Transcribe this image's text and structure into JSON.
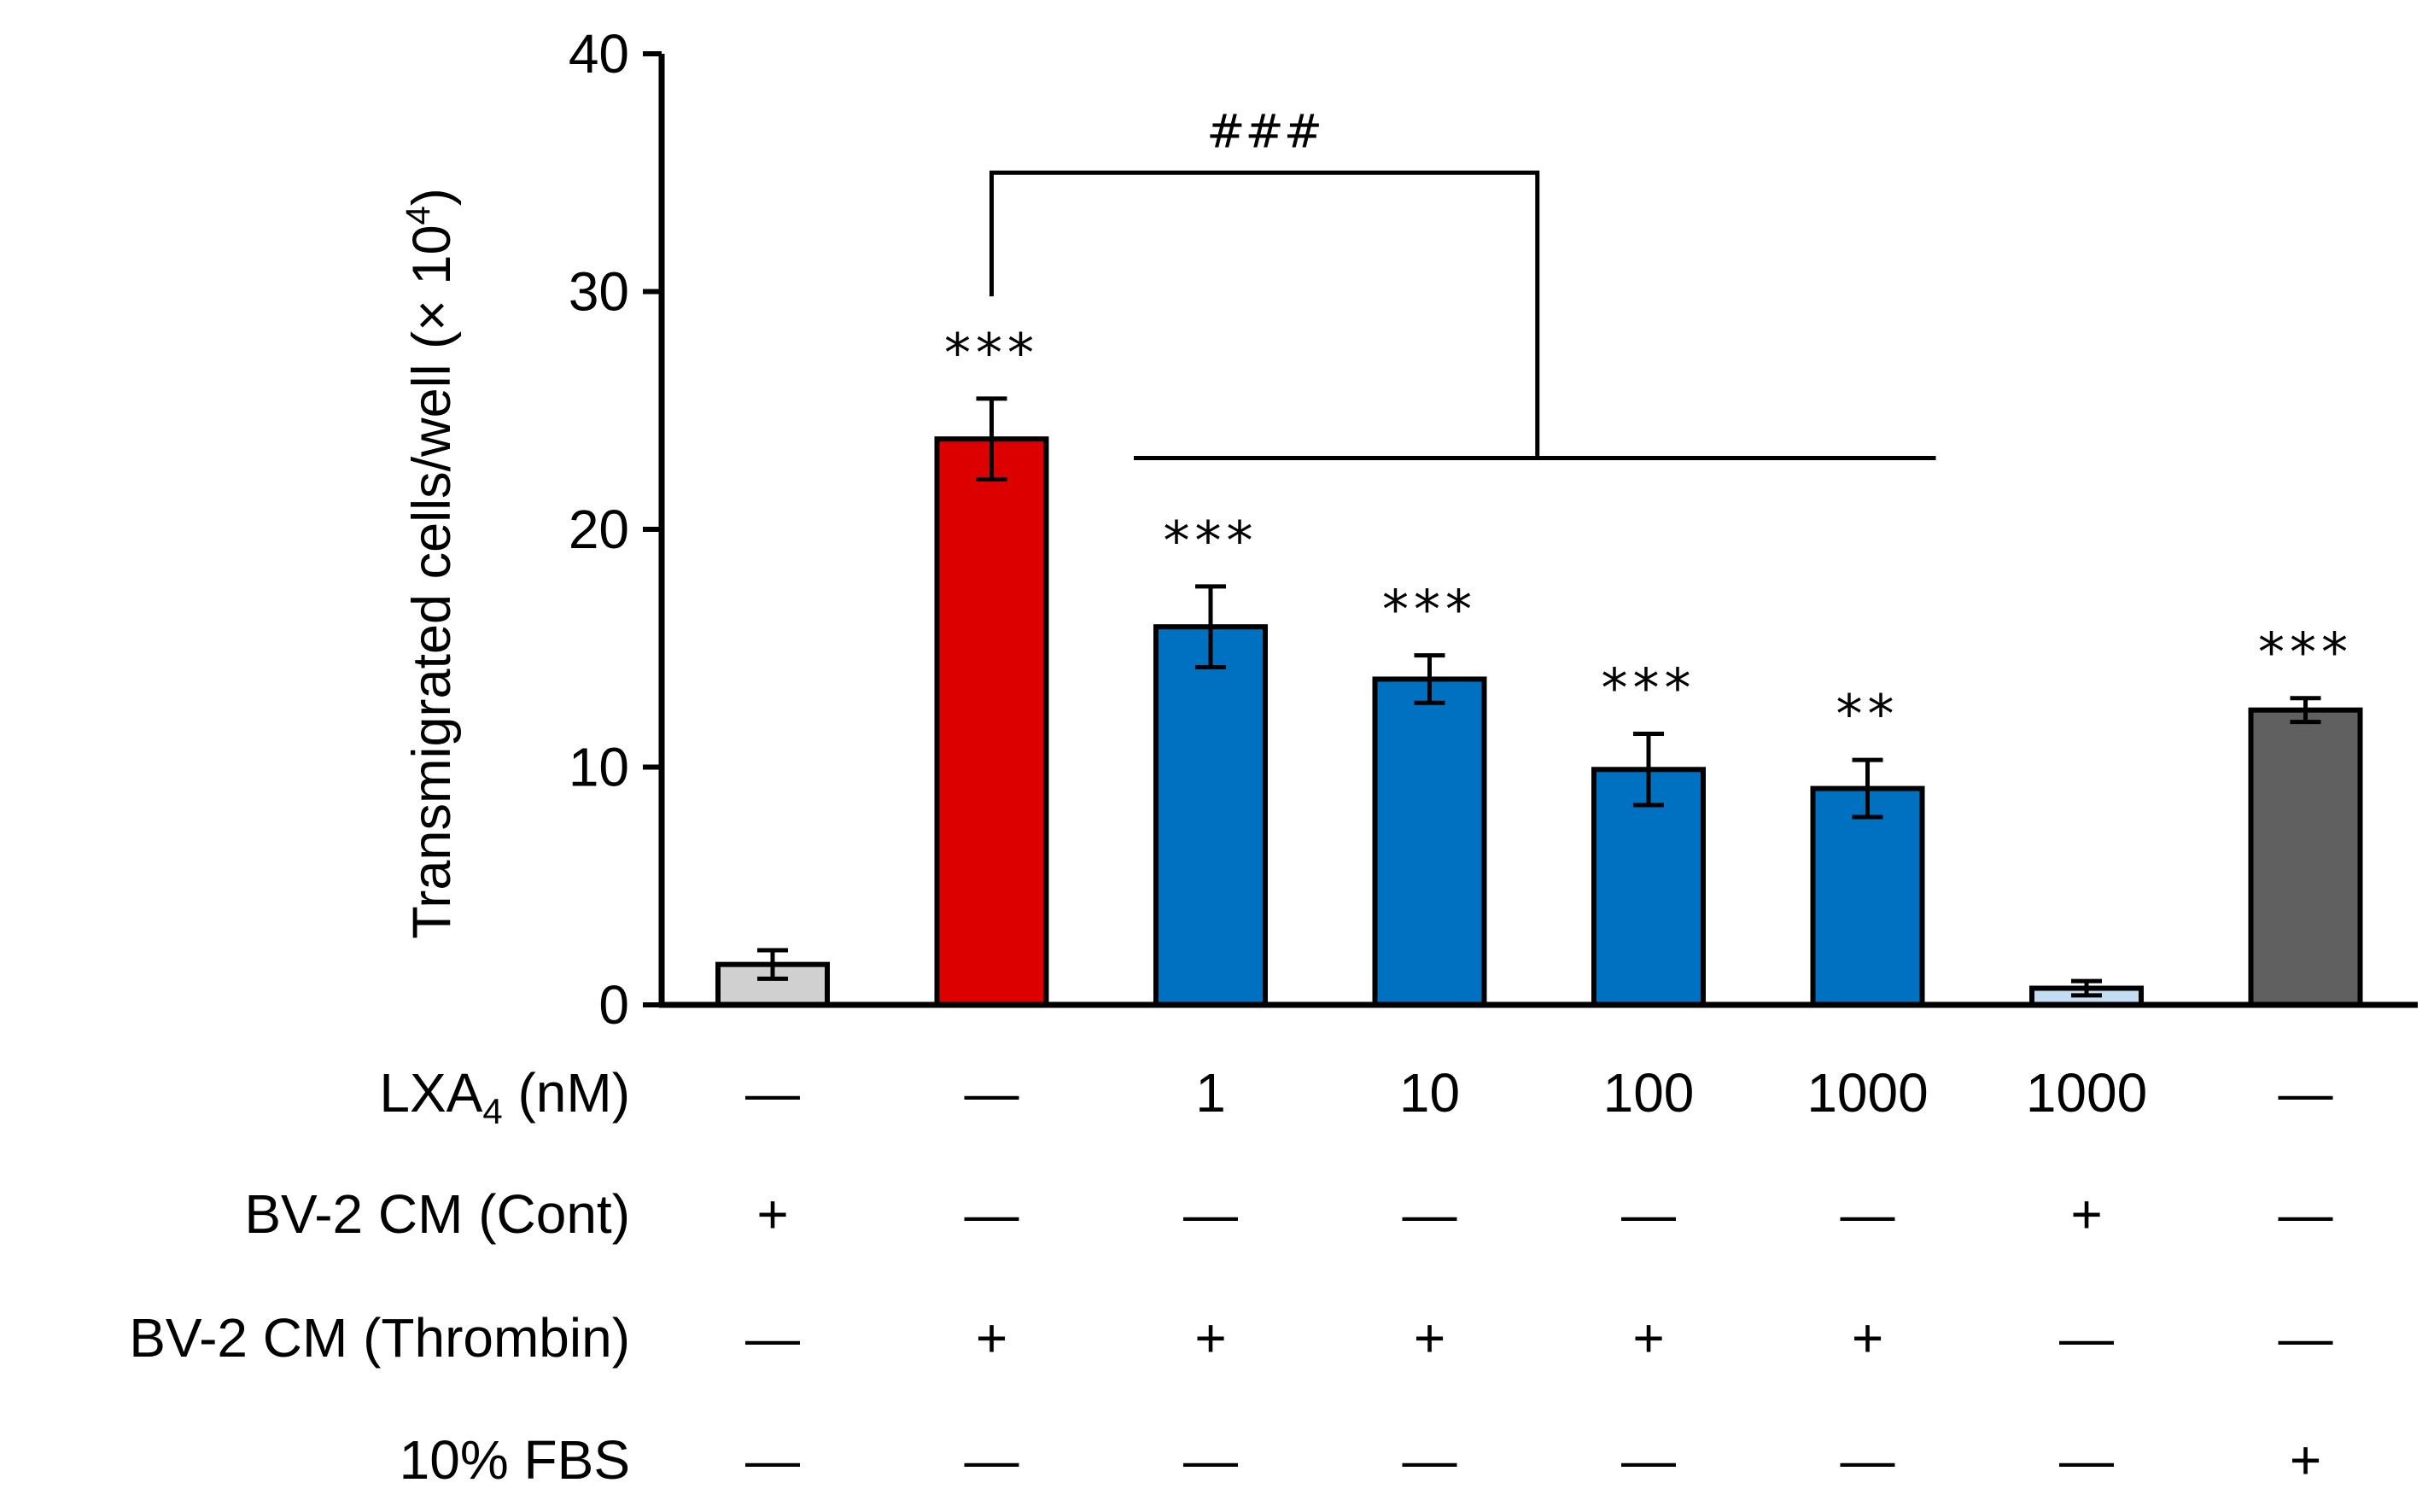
{
  "chart_data": {
    "type": "bar",
    "title": "",
    "xlabel": "",
    "ylabel": {
      "main": "Transmigrated cells/well (× 10",
      "sup": "4",
      "close": ")"
    },
    "ylim": [
      0,
      40
    ],
    "yticks": [
      "0",
      "10",
      "20",
      "30",
      "40"
    ],
    "grid": false,
    "values": [
      1.7,
      23.8,
      15.9,
      13.7,
      9.9,
      9.1,
      0.7,
      12.4
    ],
    "errors": [
      0.6,
      1.7,
      1.7,
      1.0,
      1.5,
      1.2,
      0.3,
      0.5
    ],
    "colors": [
      "#d0d0d0",
      "#dd0000",
      "#0070c0",
      "#0070c0",
      "#0070c0",
      "#0070c0",
      "#c5ddf2",
      "#606060"
    ],
    "significance": [
      "",
      "***",
      "***",
      "***",
      "***",
      "**",
      "",
      "***"
    ],
    "comparison": {
      "label": "###",
      "from_bar": 1,
      "to_bars": [
        2,
        5
      ],
      "level": 35,
      "group_level": 23
    },
    "condition_rows": [
      {
        "label": "LXA",
        "label_sub": "4",
        "label_tail": " (nM)",
        "values": [
          "—",
          "—",
          "1",
          "10",
          "100",
          "1000",
          "1000",
          "—"
        ]
      },
      {
        "label": "BV-2 CM (Cont)",
        "values": [
          "+",
          "—",
          "—",
          "—",
          "—",
          "—",
          "+",
          "—"
        ]
      },
      {
        "label": "BV-2 CM (Thrombin)",
        "values": [
          "—",
          "+",
          "+",
          "+",
          "+",
          "+",
          "—",
          "—"
        ]
      },
      {
        "label": "10% FBS",
        "values": [
          "—",
          "—",
          "—",
          "—",
          "—",
          "—",
          "—",
          "+"
        ]
      }
    ]
  }
}
